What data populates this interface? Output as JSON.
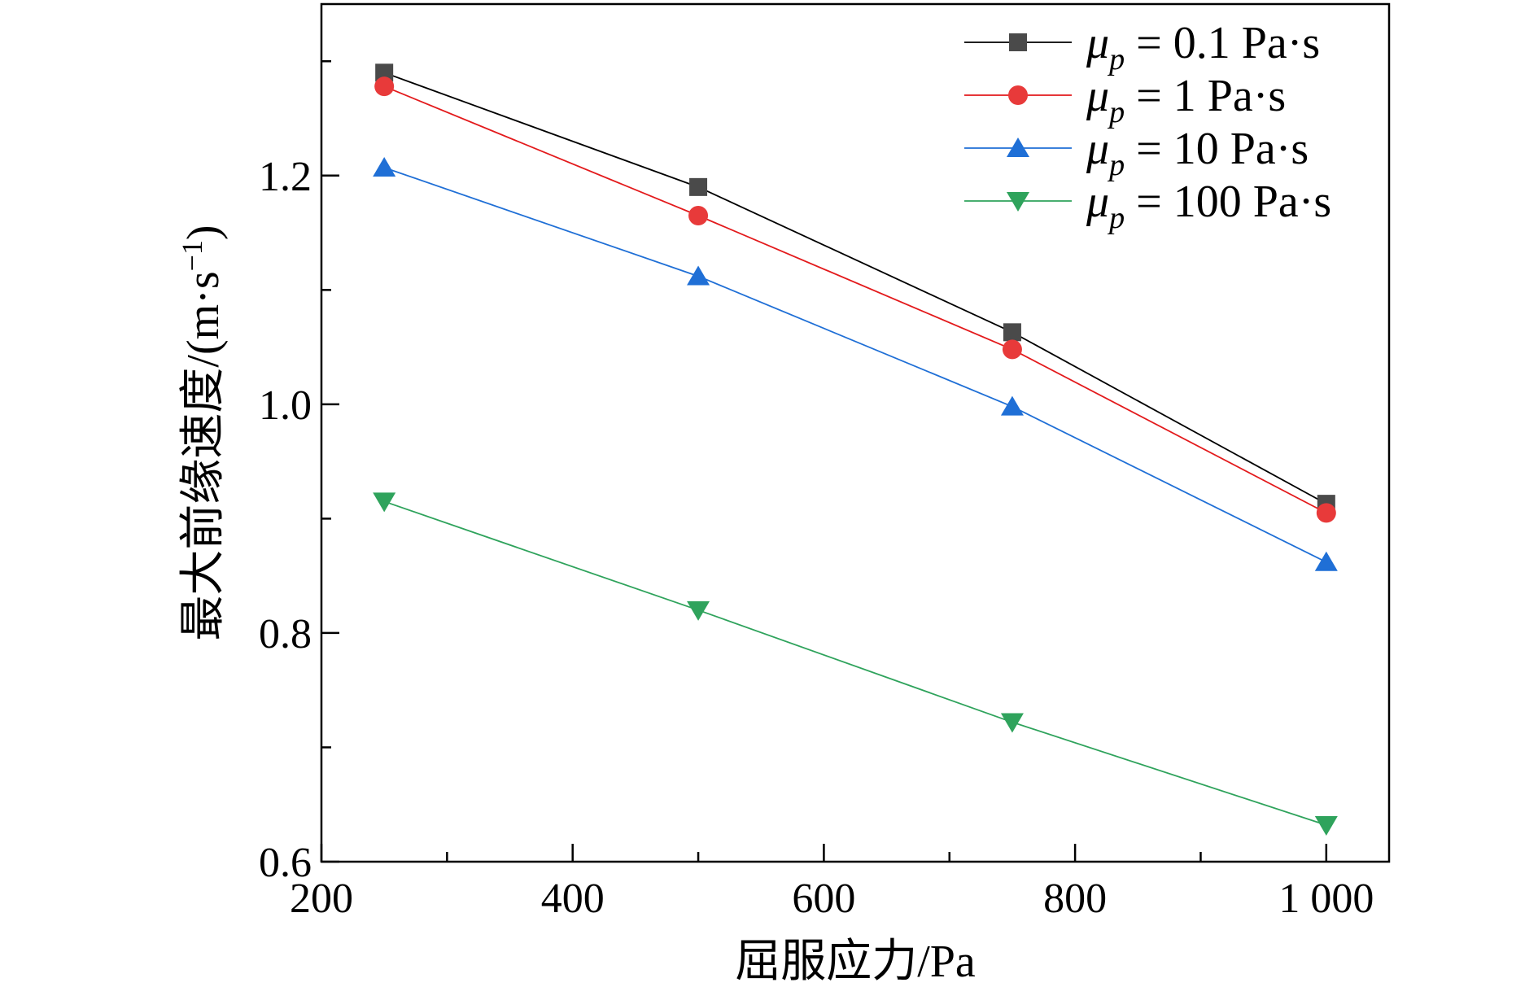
{
  "chart_data": {
    "type": "line",
    "xlabel": "屈服应力/Pa",
    "ylabel_main": "最大前缘速度/(m·s",
    "ylabel_sup": "−1",
    "ylabel_close": ")",
    "xlim": [
      200,
      1050
    ],
    "ylim": [
      0.6,
      1.35
    ],
    "xticks": [
      200,
      400,
      600,
      800,
      1000
    ],
    "xtick_labels": [
      "200",
      "400",
      "600",
      "800",
      "1 000"
    ],
    "yticks": [
      0.6,
      0.8,
      1.0,
      1.2
    ],
    "ytick_labels": [
      "0.6",
      "0.8",
      "1.0",
      "1.2"
    ],
    "x": [
      250,
      500,
      750,
      1000
    ],
    "grid": false,
    "legend_position": "top-right",
    "series": [
      {
        "name": "μp = 0.1 Pa·s",
        "symbol": "μ",
        "sub": "p",
        "rest": " = 0.1 Pa·s",
        "marker": "square",
        "color": "#000000",
        "marker_color": "#4a4a4a",
        "values": [
          1.29,
          1.19,
          1.063,
          0.913
        ]
      },
      {
        "name": "μp = 1 Pa·s",
        "symbol": "μ",
        "sub": "p",
        "rest": " = 1 Pa·s",
        "marker": "circle",
        "color": "#e31a1c",
        "marker_color": "#e83a3a",
        "values": [
          1.278,
          1.165,
          1.048,
          0.905
        ]
      },
      {
        "name": "μp = 10 Pa·s",
        "symbol": "μ",
        "sub": "p",
        "rest": " = 10 Pa·s",
        "marker": "triangle-up",
        "color": "#1f6fd6",
        "marker_color": "#1f6fd6",
        "values": [
          1.207,
          1.112,
          0.998,
          0.862
        ]
      },
      {
        "name": "μp = 100 Pa·s",
        "symbol": "μ",
        "sub": "p",
        "rest": " = 100 Pa·s",
        "marker": "triangle-down",
        "color": "#2fa35c",
        "marker_color": "#2fa35c",
        "values": [
          0.915,
          0.82,
          0.722,
          0.632
        ]
      }
    ]
  }
}
